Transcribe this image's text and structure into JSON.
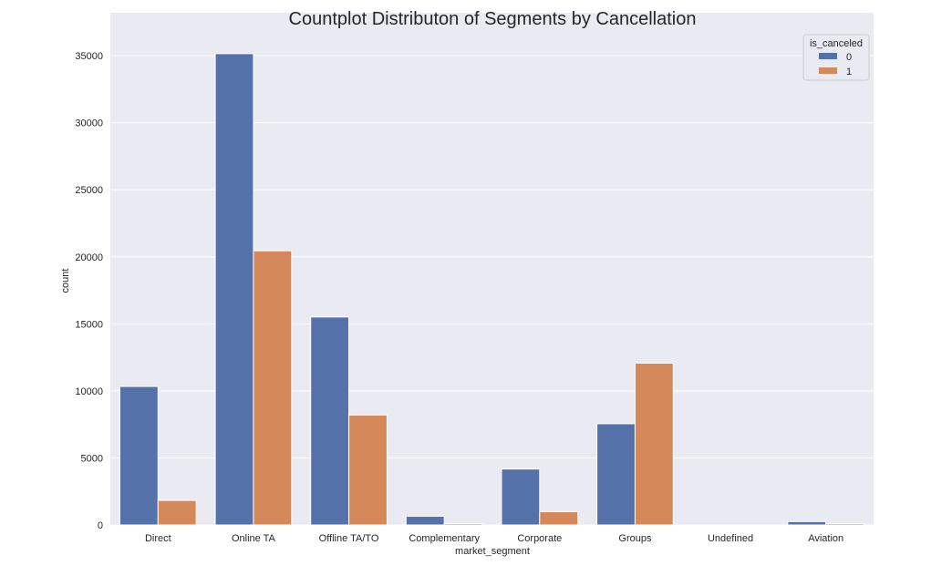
{
  "chart_data": {
    "type": "bar",
    "title": "Countplot Distributon of Segments by Cancellation",
    "xlabel": "market_segment",
    "ylabel": "count",
    "ylim": [
      0,
      38200
    ],
    "yticks": [
      0,
      5000,
      10000,
      15000,
      20000,
      25000,
      30000,
      35000
    ],
    "grid": true,
    "legend": {
      "title": "is_canceled",
      "placement": "top-right"
    },
    "categories": [
      "Direct",
      "Online TA",
      "Offline TA/TO",
      "Complementary",
      "Corporate",
      "Groups",
      "Undefined",
      "Aviation"
    ],
    "series": [
      {
        "name": "0",
        "color": "#5571a9",
        "values": [
          10330,
          35150,
          15510,
          650,
          4170,
          7550,
          0,
          250
        ]
      },
      {
        "name": "1",
        "color": "#d5885a",
        "values": [
          1830,
          20450,
          8200,
          100,
          990,
          12070,
          2,
          100
        ]
      }
    ]
  }
}
